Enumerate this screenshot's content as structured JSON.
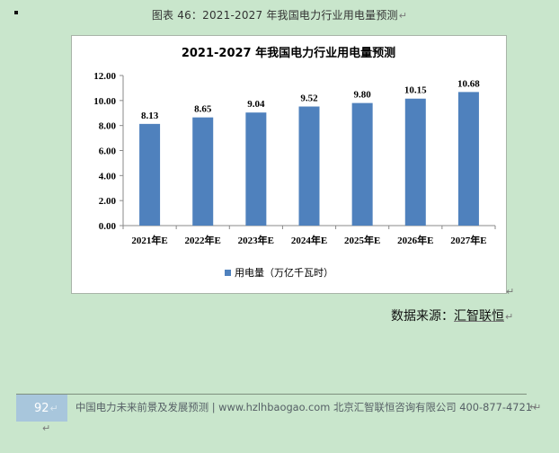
{
  "document": {
    "caption": "图表 46：2021-2027 年我国电力行业用电量预测",
    "source_label": "数据来源：",
    "source_value": "汇智联恒",
    "paragraph_mark": "↵"
  },
  "footer": {
    "page_number": "92",
    "text": "中国电力未来前景及发展预测 | www.hzlhbaogao.com 北京汇智联恒咨询有限公司  400-877-4721"
  },
  "colors": {
    "bar": "#4f81bd",
    "background": "#c9e6cc"
  },
  "chart_data": {
    "type": "bar",
    "title": "2021-2027 年我国电力行业用电量预测",
    "categories": [
      "2021年E",
      "2022年E",
      "2023年E",
      "2024年E",
      "2025年E",
      "2026年E",
      "2027年E"
    ],
    "series": [
      {
        "name": "用电量（万亿千瓦时）",
        "values": [
          8.13,
          8.65,
          9.04,
          9.52,
          9.8,
          10.15,
          10.68
        ]
      }
    ],
    "value_labels": [
      "8.13",
      "8.65",
      "9.04",
      "9.52",
      "9.80",
      "10.15",
      "10.68"
    ],
    "y_ticks": [
      "0.00",
      "2.00",
      "4.00",
      "6.00",
      "8.00",
      "10.00",
      "12.00"
    ],
    "ylim": [
      0,
      12
    ],
    "xlabel": "",
    "ylabel": "",
    "grid": false,
    "legend_position": "bottom"
  }
}
